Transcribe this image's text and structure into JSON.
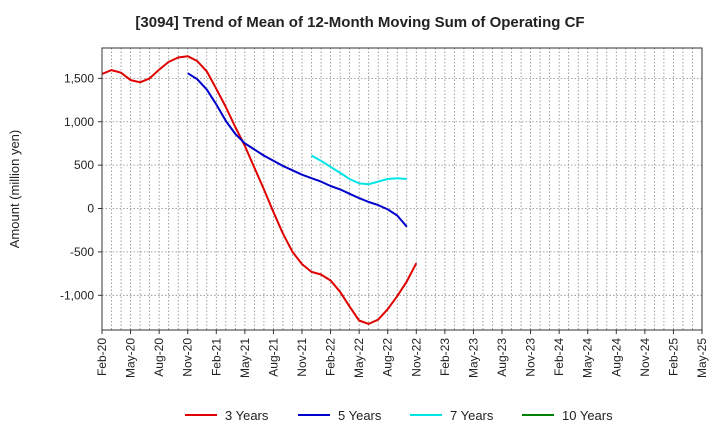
{
  "chart_data": {
    "type": "line",
    "title": "[3094]  Trend of Mean of 12-Month Moving Sum of Operating CF",
    "xlabel": "",
    "ylabel": "Amount (million yen)",
    "ylim": [
      -1400,
      1850
    ],
    "yticks": [
      1500,
      1000,
      500,
      0,
      -500,
      -1000
    ],
    "ytick_labels": [
      "1,500",
      "1,000",
      "500",
      "0",
      "-500",
      "-1,000"
    ],
    "categories": [
      "Feb-20",
      "May-20",
      "Aug-20",
      "Nov-20",
      "Feb-21",
      "May-21",
      "Aug-21",
      "Nov-21",
      "Feb-22",
      "May-22",
      "Aug-22",
      "Nov-22",
      "Feb-23",
      "May-23",
      "Aug-23",
      "Nov-23",
      "Feb-24",
      "May-24",
      "Aug-24",
      "Nov-24",
      "Feb-25",
      "May-25"
    ],
    "grid": true,
    "legend_position": "bottom",
    "series": [
      {
        "name": "3 Years",
        "color": "#e00000",
        "points": [
          [
            0,
            1550
          ],
          [
            1,
            1595
          ],
          [
            2,
            1565
          ],
          [
            3,
            1480
          ],
          [
            4,
            1455
          ],
          [
            5,
            1500
          ],
          [
            6,
            1600
          ],
          [
            7,
            1690
          ],
          [
            8,
            1740
          ],
          [
            9,
            1755
          ],
          [
            10,
            1700
          ],
          [
            11,
            1580
          ],
          [
            12,
            1380
          ],
          [
            13,
            1170
          ],
          [
            14,
            940
          ],
          [
            15,
            720
          ],
          [
            16,
            470
          ],
          [
            17,
            220
          ],
          [
            18,
            -40
          ],
          [
            19,
            -290
          ],
          [
            20,
            -500
          ],
          [
            21,
            -640
          ],
          [
            22,
            -730
          ],
          [
            23,
            -760
          ],
          [
            24,
            -830
          ],
          [
            25,
            -960
          ],
          [
            26,
            -1130
          ],
          [
            27,
            -1290
          ],
          [
            28,
            -1330
          ],
          [
            29,
            -1280
          ],
          [
            30,
            -1160
          ],
          [
            31,
            -1010
          ],
          [
            32,
            -840
          ],
          [
            33,
            -630
          ]
        ]
      },
      {
        "name": "5 Years",
        "color": "#0000cc",
        "points": [
          [
            9,
            1560
          ],
          [
            10,
            1490
          ],
          [
            11,
            1370
          ],
          [
            12,
            1200
          ],
          [
            13,
            1010
          ],
          [
            14,
            860
          ],
          [
            15,
            750
          ],
          [
            16,
            680
          ],
          [
            17,
            610
          ],
          [
            18,
            550
          ],
          [
            19,
            490
          ],
          [
            20,
            440
          ],
          [
            21,
            390
          ],
          [
            22,
            350
          ],
          [
            23,
            310
          ],
          [
            24,
            260
          ],
          [
            25,
            220
          ],
          [
            26,
            170
          ],
          [
            27,
            120
          ],
          [
            28,
            75
          ],
          [
            29,
            40
          ],
          [
            30,
            -10
          ],
          [
            31,
            -80
          ],
          [
            32,
            -210
          ]
        ]
      },
      {
        "name": "7 Years",
        "color": "#00e5e5",
        "points": [
          [
            22,
            610
          ],
          [
            23,
            550
          ],
          [
            24,
            480
          ],
          [
            25,
            410
          ],
          [
            26,
            340
          ],
          [
            27,
            290
          ],
          [
            28,
            280
          ],
          [
            29,
            310
          ],
          [
            30,
            340
          ],
          [
            31,
            350
          ],
          [
            32,
            340
          ]
        ]
      },
      {
        "name": "10 Years",
        "color": "#008000",
        "points": []
      }
    ]
  }
}
